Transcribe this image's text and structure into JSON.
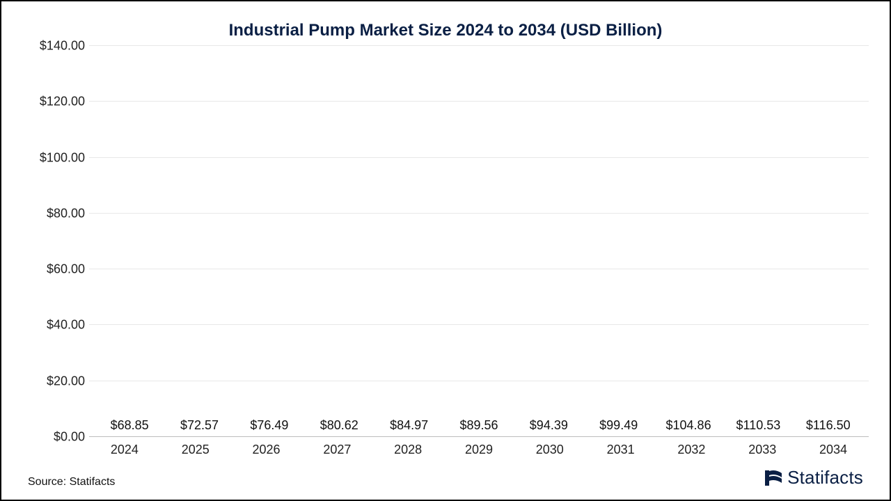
{
  "chart": {
    "type": "bar",
    "title": "Industrial Pump Market Size 2024 to 2034 (USD Billion)",
    "title_color": "#0a1f44",
    "title_fontsize": 24,
    "categories": [
      "2024",
      "2025",
      "2026",
      "2027",
      "2028",
      "2029",
      "2030",
      "2031",
      "2032",
      "2033",
      "2034"
    ],
    "values": [
      68.85,
      72.57,
      76.49,
      80.62,
      84.97,
      89.56,
      94.39,
      99.49,
      104.86,
      110.53,
      116.5
    ],
    "value_labels": [
      "$68.85",
      "$72.57",
      "$76.49",
      "$80.62",
      "$84.97",
      "$89.56",
      "$94.39",
      "$99.49",
      "$104.86",
      "$110.53",
      "$116.50"
    ],
    "bar_color": "#a60e13",
    "ylim": [
      0,
      140
    ],
    "ytick_step": 20,
    "yticks": [
      "$0.00",
      "$20.00",
      "$40.00",
      "$60.00",
      "$80.00",
      "$100.00",
      "$120.00",
      "$140.00"
    ],
    "grid_color": "#e8e8e8",
    "baseline_color": "#bdbdbd",
    "background_color": "#ffffff",
    "label_fontsize": 18,
    "data_label_fontsize": 18,
    "bar_width": 0.62
  },
  "footer": {
    "source": "Source: Statifacts",
    "brand": "Statifacts",
    "brand_color": "#0a1f44"
  }
}
